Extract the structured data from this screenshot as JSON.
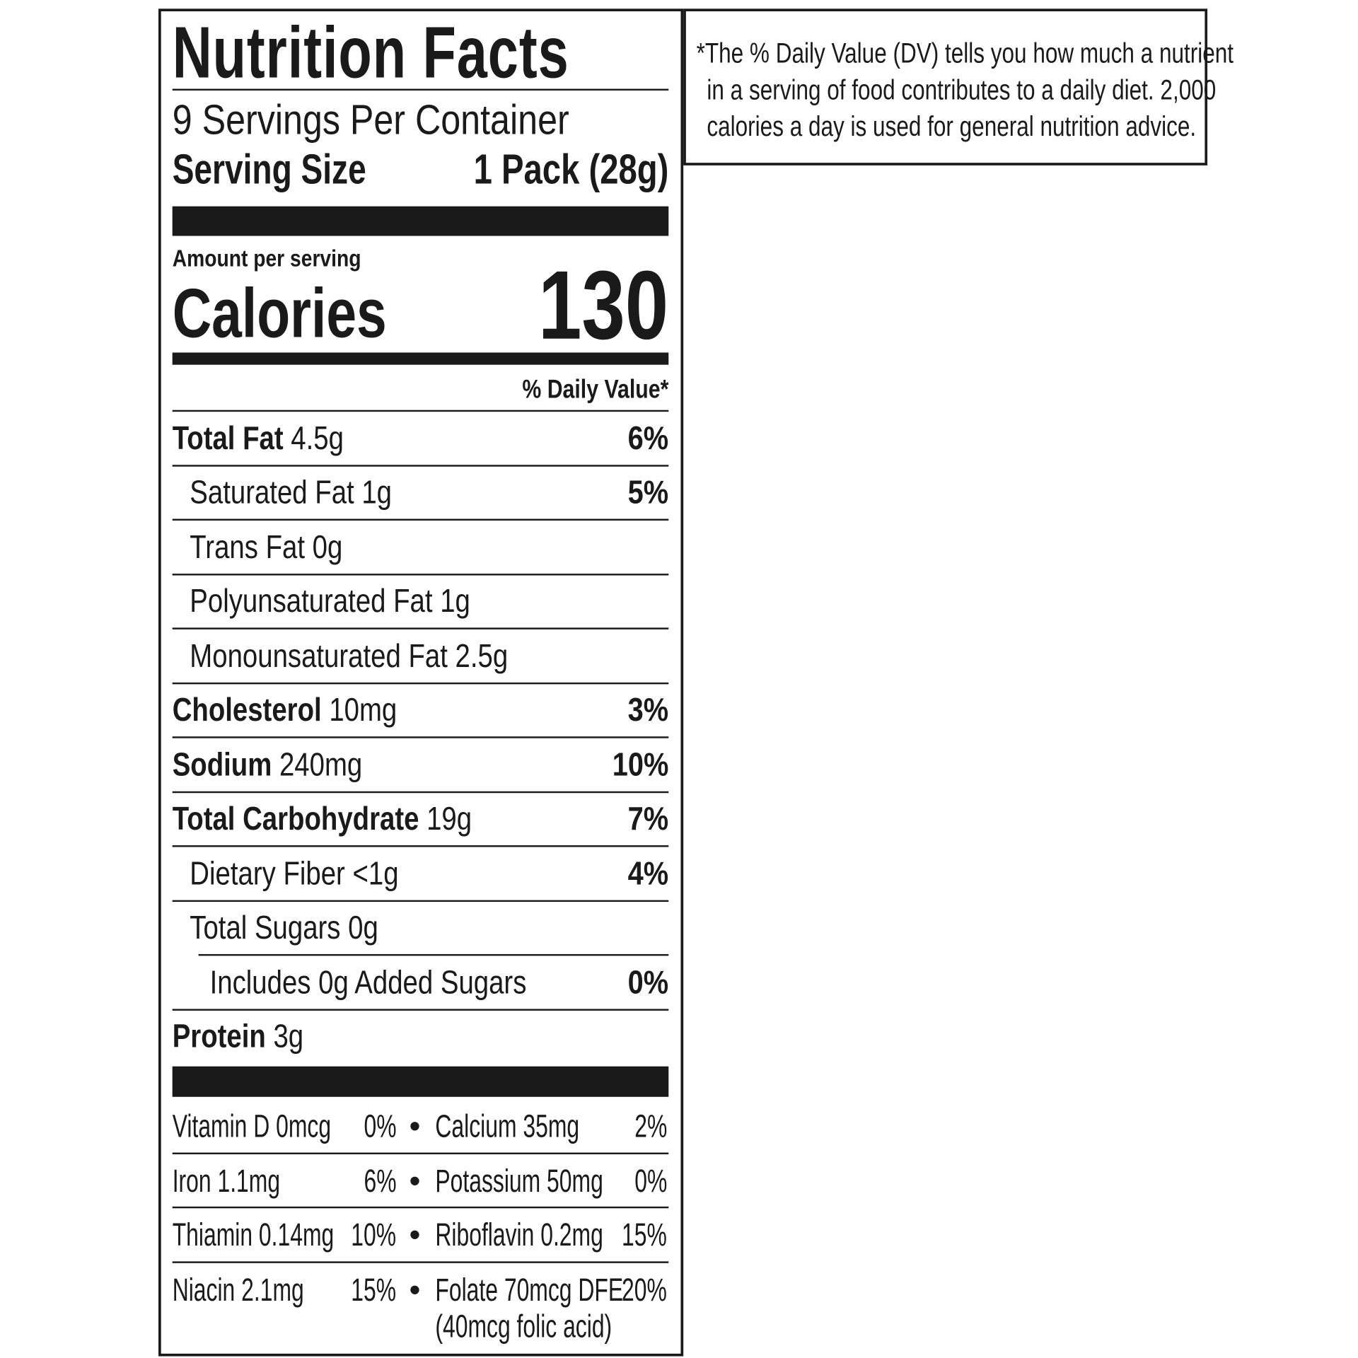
{
  "title": "Nutrition Facts",
  "servings_per_container": "9 Servings Per Container",
  "serving_size_label": "Serving Size",
  "serving_size_value": "1 Pack (28g)",
  "amount_per_serving": "Amount per serving",
  "calories_label": "Calories",
  "calories_value": "130",
  "daily_value_header": "% Daily Value*",
  "nutrients": [
    {
      "name": "Total Fat",
      "amount": "4.5g",
      "dv": "6%",
      "level": "main"
    },
    {
      "name": "Saturated Fat",
      "amount": "1g",
      "dv": "5%",
      "level": "sub"
    },
    {
      "name": "Trans Fat",
      "amount": "0g",
      "dv": "",
      "level": "sub"
    },
    {
      "name": "Polyunsaturated Fat",
      "amount": "1g",
      "dv": "",
      "level": "sub"
    },
    {
      "name": "Monounsaturated Fat",
      "amount": "2.5g",
      "dv": "",
      "level": "sub"
    },
    {
      "name": "Cholesterol",
      "amount": "10mg",
      "dv": "3%",
      "level": "main"
    },
    {
      "name": "Sodium",
      "amount": "240mg",
      "dv": "10%",
      "level": "main"
    },
    {
      "name": "Total Carbohydrate",
      "amount": "19g",
      "dv": "7%",
      "level": "main"
    },
    {
      "name": "Dietary Fiber",
      "amount": "<1g",
      "dv": "4%",
      "level": "sub"
    },
    {
      "name": "Total Sugars",
      "amount": "0g",
      "dv": "",
      "level": "sub"
    },
    {
      "name": "Includes 0g Added Sugars",
      "amount": "",
      "dv": "0%",
      "level": "subsub"
    },
    {
      "name": "Protein",
      "amount": "3g",
      "dv": "",
      "level": "main"
    }
  ],
  "vitamins": [
    [
      {
        "name": "Vitamin D 0mcg",
        "dv": "0%"
      },
      {
        "name": "Calcium 35mg",
        "dv": "2%"
      }
    ],
    [
      {
        "name": "Iron 1.1mg",
        "dv": "6%"
      },
      {
        "name": "Potassium 50mg",
        "dv": "0%"
      }
    ],
    [
      {
        "name": "Thiamin 0.14mg",
        "dv": "10%"
      },
      {
        "name": "Riboflavin 0.2mg",
        "dv": "15%"
      }
    ],
    [
      {
        "name": "Niacin 2.1mg",
        "dv": "15%"
      },
      {
        "name": "Folate 70mcg DFE",
        "dv": "20%",
        "note": "(40mcg folic acid)"
      }
    ]
  ],
  "bullet": "•",
  "footnote": {
    "line1": "*The % Daily Value (DV) tells you how much a nutrient",
    "line2": "in a serving of food contributes to a daily diet. 2,000",
    "line3": "calories a day is used for general nutrition advice."
  },
  "colors": {
    "ink": "#1a1a1a",
    "background": "#ffffff"
  }
}
